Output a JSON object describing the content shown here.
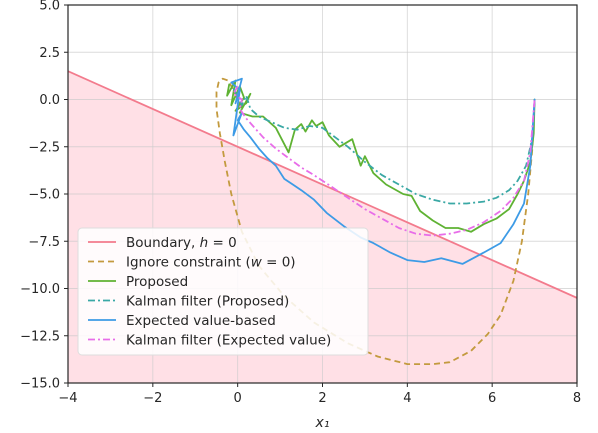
{
  "chart_data": {
    "type": "line",
    "xlabel": "x₁",
    "ylabel": "",
    "xlim": [
      -4,
      8
    ],
    "ylim": [
      -15,
      5
    ],
    "xticks": [
      "−4",
      "−2",
      "0",
      "2",
      "4",
      "6",
      "8"
    ],
    "xtick_values": [
      -4,
      -2,
      0,
      2,
      4,
      6,
      8
    ],
    "yticks": [
      "5.0",
      "2.5",
      "0.0",
      "−2.5",
      "−5.0",
      "−7.5",
      "−10.0",
      "−12.5",
      "−15.0"
    ],
    "ytick_values": [
      5,
      2.5,
      0,
      -2.5,
      -5,
      -7.5,
      -10,
      -12.5,
      -15
    ],
    "grid": true,
    "legend_position": "lower-left",
    "unsafe_region": {
      "boundary": [
        [
          -4,
          1.5
        ],
        [
          8,
          -10.5
        ]
      ],
      "fill_color": "#ffe0e6"
    },
    "series": [
      {
        "name": "Boundary, h = 0",
        "legend_main": "Boundary, ",
        "legend_math": "h",
        "legend_tail": " = 0",
        "color": "#f37b8d",
        "dash": "",
        "x": [
          -4,
          8
        ],
        "y": [
          1.5,
          -10.5
        ]
      },
      {
        "name": "Ignore constraint (w = 0)",
        "legend_main": "Ignore constraint  (",
        "legend_math": "w",
        "legend_tail": " = 0)",
        "color": "#c39a3e",
        "dash": "6,4",
        "x": [
          7.0,
          6.95,
          6.85,
          6.7,
          6.5,
          6.2,
          5.9,
          5.5,
          5.0,
          4.6,
          4.0,
          3.3,
          2.6,
          1.8,
          1.1,
          0.5,
          0.1,
          -0.15,
          -0.3,
          -0.42,
          -0.5,
          -0.5,
          -0.45,
          -0.35,
          -0.22,
          -0.1,
          0.02,
          0.08
        ],
        "y": [
          0.0,
          -2.5,
          -5.0,
          -7.5,
          -9.6,
          -11.4,
          -12.4,
          -13.3,
          -13.9,
          -14.0,
          -14.0,
          -13.6,
          -12.9,
          -11.8,
          -10.4,
          -8.8,
          -7.0,
          -5.0,
          -3.3,
          -1.8,
          -0.5,
          0.4,
          0.9,
          1.1,
          1.0,
          0.5,
          -0.1,
          -0.4
        ]
      },
      {
        "name": "Proposed",
        "legend_main": "Proposed",
        "color": "#5fb233",
        "dash": "",
        "x": [
          -0.2,
          -0.25,
          -0.05,
          -0.15,
          0.05,
          0.15,
          -0.05,
          0.2,
          0.3,
          0.05,
          0.35,
          0.6,
          0.9,
          1.2,
          1.35,
          1.5,
          1.6,
          1.75,
          1.85,
          2.0,
          2.15,
          2.4,
          2.7,
          2.9,
          3.0,
          3.2,
          3.5,
          3.9,
          4.1,
          4.3,
          4.6,
          4.9,
          5.2,
          5.5,
          5.8,
          6.1,
          6.4,
          6.6,
          6.75,
          6.9,
          6.98,
          7.0
        ],
        "y": [
          0.8,
          0.2,
          1.0,
          -0.3,
          0.7,
          0.1,
          -0.6,
          -0.2,
          0.3,
          -0.7,
          -0.9,
          -0.9,
          -1.5,
          -2.8,
          -1.6,
          -1.3,
          -1.7,
          -1.1,
          -1.4,
          -1.2,
          -1.9,
          -2.5,
          -2.1,
          -3.5,
          -3.0,
          -3.9,
          -4.5,
          -5.0,
          -5.1,
          -5.9,
          -6.4,
          -6.8,
          -6.8,
          -7.0,
          -6.6,
          -6.3,
          -5.8,
          -5.0,
          -4.3,
          -3.3,
          -1.8,
          0.0
        ]
      },
      {
        "name": "Kalman filter (Proposed)",
        "legend_main": "Kalman filter (Proposed)",
        "color": "#3aa8a5",
        "dash": "7,3,2,3",
        "x": [
          -0.1,
          0.0,
          0.1,
          0.2,
          0.3,
          0.5,
          0.8,
          1.1,
          1.4,
          1.7,
          2.0,
          2.3,
          2.6,
          3.0,
          3.4,
          3.8,
          4.2,
          4.6,
          5.0,
          5.4,
          5.8,
          6.1,
          6.4,
          6.6,
          6.8,
          6.95,
          7.0
        ],
        "y": [
          0.6,
          0.1,
          -0.3,
          0.2,
          -0.5,
          -0.9,
          -1.2,
          -1.5,
          -1.6,
          -1.4,
          -1.5,
          -2.0,
          -2.5,
          -3.3,
          -4.0,
          -4.5,
          -5.0,
          -5.3,
          -5.5,
          -5.5,
          -5.4,
          -5.2,
          -4.8,
          -4.3,
          -3.5,
          -2.0,
          0.0
        ]
      },
      {
        "name": "Expected value-based",
        "legend_main": "Expected value-based",
        "color": "#3d9be6",
        "dash": "",
        "x": [
          0.05,
          -0.15,
          0.1,
          -0.05,
          0.05,
          -0.1,
          0.1,
          0.0,
          0.15,
          0.3,
          0.5,
          0.7,
          0.9,
          1.1,
          1.3,
          1.5,
          1.8,
          2.1,
          2.5,
          2.9,
          3.2,
          3.6,
          4.0,
          4.4,
          4.8,
          5.3,
          5.8,
          6.2,
          6.5,
          6.75,
          6.9,
          7.0
        ],
        "y": [
          0.5,
          0.9,
          1.1,
          -0.2,
          0.5,
          -1.9,
          -0.7,
          -1.1,
          -1.6,
          -2.0,
          -2.6,
          -3.1,
          -3.5,
          -4.2,
          -4.5,
          -4.8,
          -5.3,
          -6.0,
          -6.7,
          -7.3,
          -7.6,
          -8.1,
          -8.5,
          -8.6,
          -8.4,
          -8.7,
          -8.1,
          -7.6,
          -6.6,
          -5.5,
          -3.5,
          0.0
        ]
      },
      {
        "name": "Kalman filter (Expected value)",
        "legend_main": "Kalman filter (Expected value)",
        "color": "#e86de9",
        "dash": "7,3,2,3",
        "x": [
          0.0,
          -0.1,
          0.1,
          0.05,
          0.2,
          0.4,
          0.6,
          0.9,
          1.2,
          1.5,
          1.8,
          2.2,
          2.6,
          3.0,
          3.4,
          3.8,
          4.2,
          4.6,
          5.0,
          5.4,
          5.8,
          6.2,
          6.5,
          6.75,
          6.9,
          7.0
        ],
        "y": [
          0.7,
          0.3,
          0.0,
          -0.5,
          -1.0,
          -1.5,
          -2.0,
          -2.6,
          -3.1,
          -3.6,
          -4.0,
          -4.6,
          -5.2,
          -5.8,
          -6.3,
          -6.8,
          -7.1,
          -7.2,
          -7.1,
          -6.9,
          -6.5,
          -5.9,
          -5.2,
          -4.3,
          -2.8,
          0.0
        ]
      }
    ]
  }
}
